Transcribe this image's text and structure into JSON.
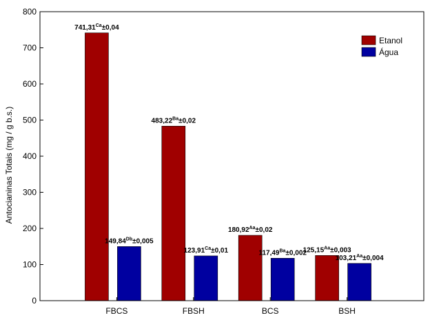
{
  "chart_data": {
    "type": "bar",
    "ylabel": "Antocianinas Totais (mg / g b.s.)",
    "ylim": [
      0,
      800
    ],
    "yticks": [
      0,
      100,
      200,
      300,
      400,
      500,
      600,
      700,
      800
    ],
    "categories": [
      "FBCS",
      "FBSH",
      "BCS",
      "BSH"
    ],
    "legend_position": "top-right",
    "series": [
      {
        "name": "Etanol",
        "color": "#a00000",
        "values": [
          741.31,
          483.22,
          180.92,
          125.15
        ],
        "labels": [
          {
            "value": "741,31",
            "sup": "Ca",
            "err": "±0,04"
          },
          {
            "value": "483,22",
            "sup": "Ba",
            "err": "±0,02"
          },
          {
            "value": "180,92",
            "sup": "Aa",
            "err": "±0,02"
          },
          {
            "value": "125,15",
            "sup": "Aa",
            "err": "±0,003"
          }
        ]
      },
      {
        "name": "Água",
        "color": "#0000a0",
        "values": [
          149.84,
          123.91,
          117.49,
          103.21
        ],
        "labels": [
          {
            "value": "149,84",
            "sup": "Db",
            "err": "±0,005"
          },
          {
            "value": "123,91",
            "sup": "Ca",
            "err": "±0,01"
          },
          {
            "value": "117,49",
            "sup": "Ba",
            "err": "±0,002"
          },
          {
            "value": "103,21",
            "sup": "Aa",
            "err": "±0,004"
          }
        ]
      }
    ]
  }
}
